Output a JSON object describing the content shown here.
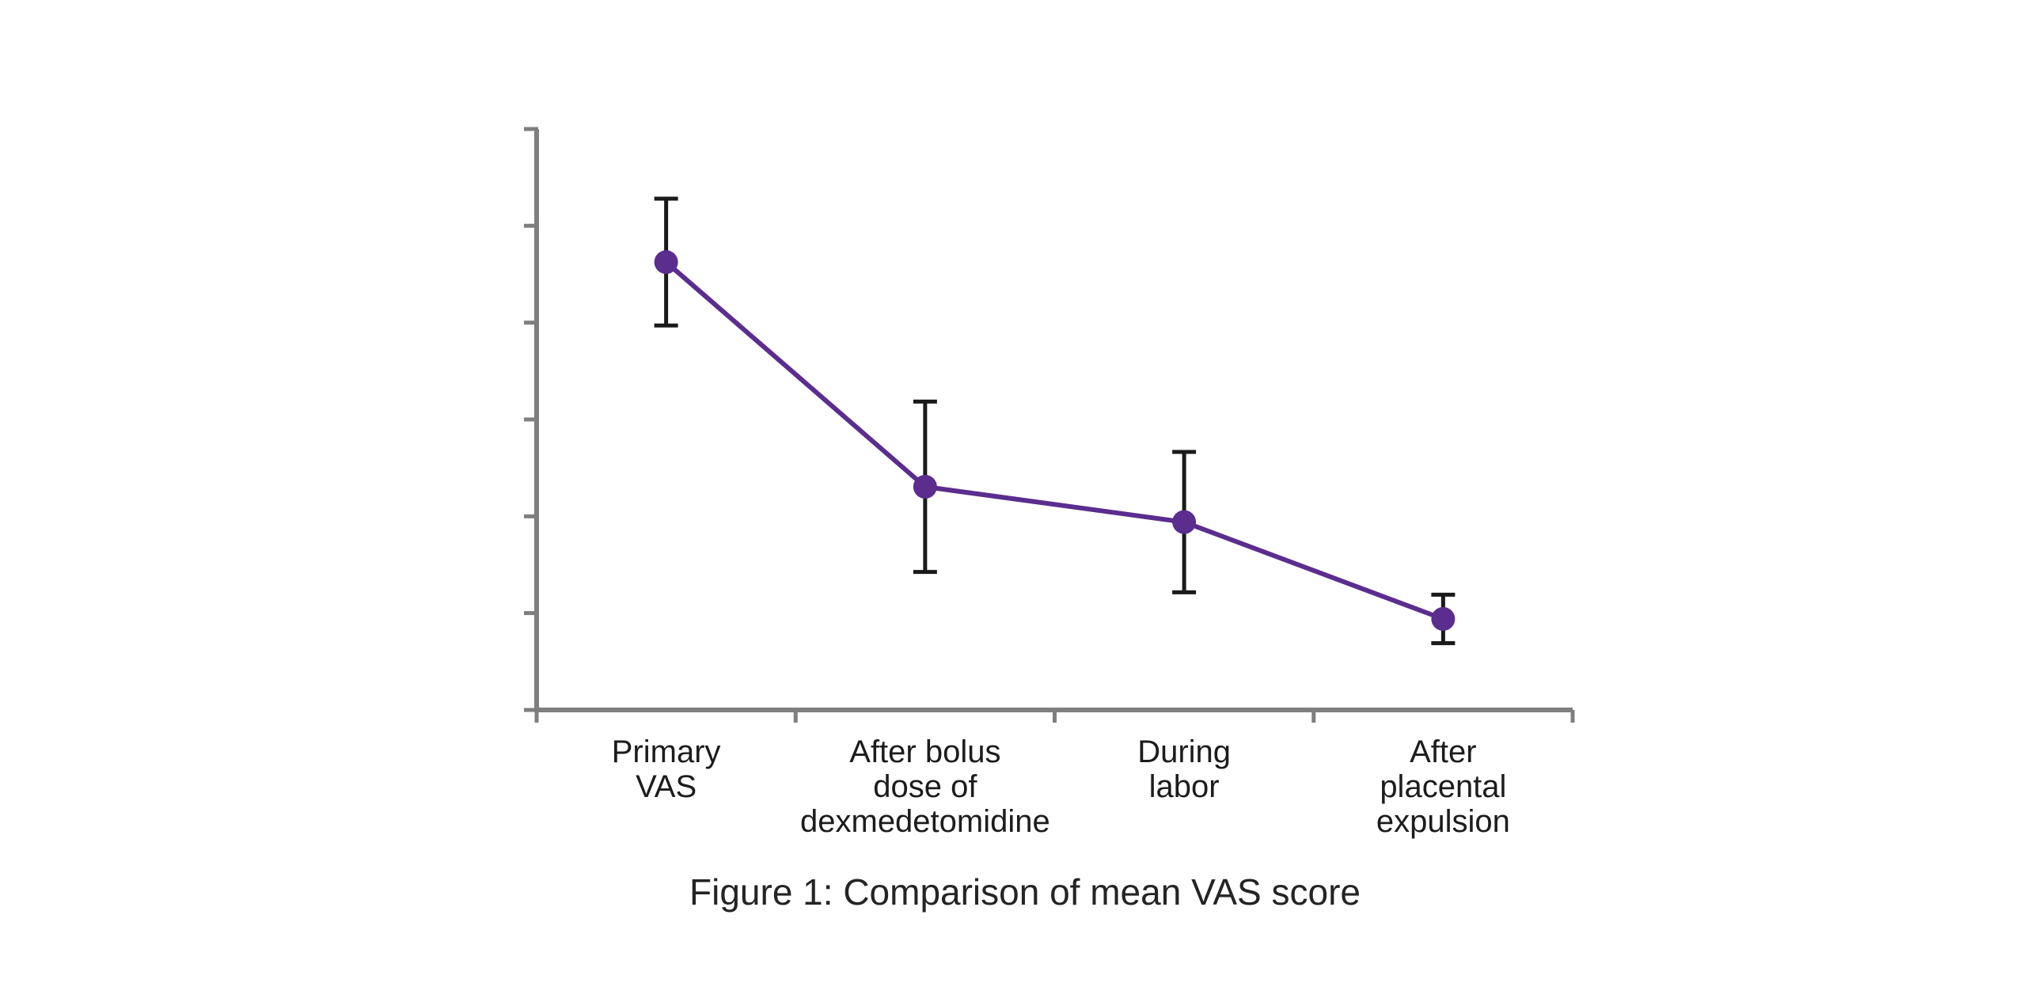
{
  "chart_data": {
    "type": "line",
    "title": "Figure 1: Comparison of mean VAS score",
    "categories": [
      "Primary\nVAS",
      "After bolus\ndose of\ndexmedetomidine",
      "During\nlabor",
      "After\nplacental\nexpulsion"
    ],
    "series": [
      {
        "name": "Mean VAS score",
        "values": [
          9.25,
          4.61,
          3.88,
          1.88
        ],
        "error": [
          1.31,
          1.76,
          1.45,
          0.5
        ]
      }
    ],
    "data_labels": [
      "9.25",
      "4.61",
      "3.88",
      "1.88"
    ],
    "xlabel": "",
    "ylabel": "",
    "ylim": [
      0,
      12
    ],
    "yticks": [
      0,
      2,
      4,
      6,
      8,
      10,
      12
    ],
    "grid": false,
    "legend": "none",
    "marker": "circle",
    "colors": {
      "line": "#5b2d8e",
      "marker": "#5b2d8e",
      "error_bar": "#1a1a1a",
      "axis": "#7f7f7f",
      "text": "#1c1c1c"
    }
  }
}
